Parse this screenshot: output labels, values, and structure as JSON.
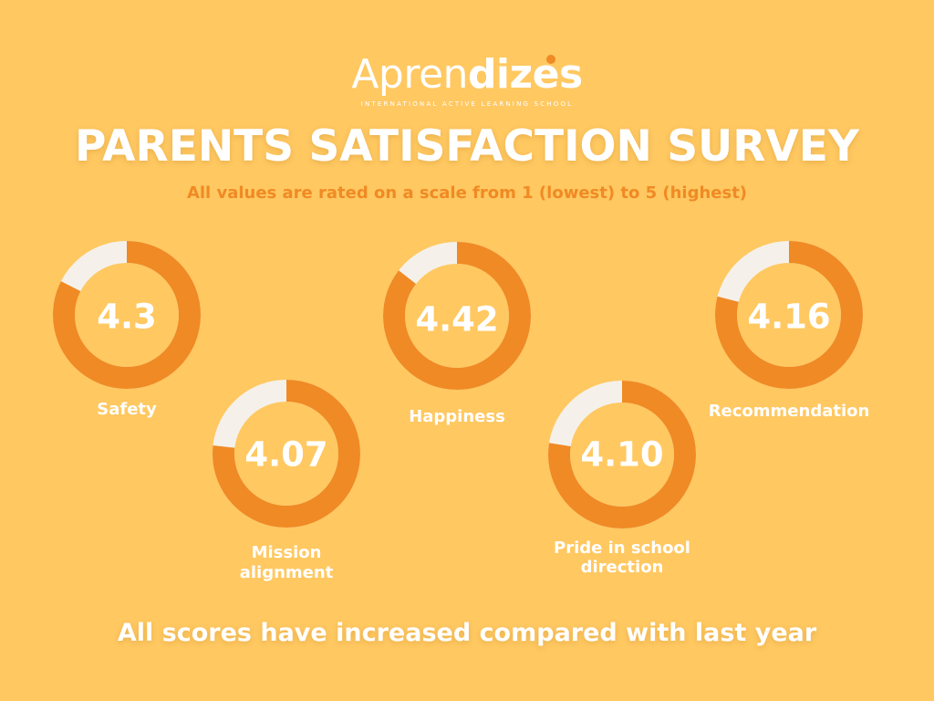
{
  "brand": {
    "name_light": "Apren",
    "name_bold": "dizes",
    "tagline": "INTERNATIONAL ACTIVE LEARNING SCHOOL",
    "dot_color": "#F08A24"
  },
  "title": "PARENTS SATISFACTION SURVEY",
  "subtitle": "All values are rated on a scale from 1 (lowest) to 5 (highest)",
  "footer": "All scores have increased compared with last year",
  "colors": {
    "background": "#FFC861",
    "ring_fill": "#F08A24",
    "ring_remainder": "#F5F1EA",
    "text": "#FFFFFF"
  },
  "chart_data": {
    "type": "pie",
    "scale": [
      1,
      5
    ],
    "items": [
      {
        "label": "Safety",
        "value_label": "4.3",
        "value": 4.3
      },
      {
        "label": "Mission alignment",
        "value_label": "4.07",
        "value": 4.07
      },
      {
        "label": "Happiness",
        "value_label": "4.42",
        "value": 4.42
      },
      {
        "label": "Pride in school direction",
        "value_label": "4.10",
        "value": 4.1
      },
      {
        "label": "Recommendation",
        "value_label": "4.16",
        "value": 4.16
      }
    ]
  }
}
